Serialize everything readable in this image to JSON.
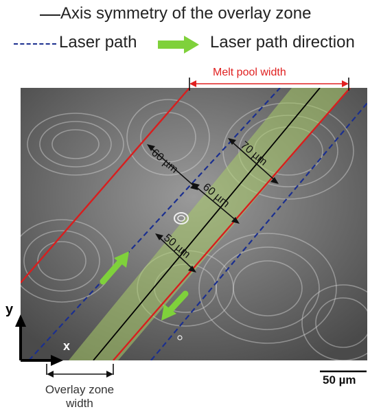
{
  "legend": {
    "axis_label": "Axis symmetry of the overlay zone",
    "laser_path_label": "Laser path",
    "direction_label": "Laser path direction"
  },
  "annotations": {
    "melt_pool_width": "Melt pool width",
    "dim_60_left": "60 µm",
    "dim_70": "70 µm",
    "dim_60_center": "60 µm",
    "dim_50": "50 µm",
    "overlay_zone_width_line1": "Overlay zone",
    "overlay_zone_width_line2": "width",
    "axis_x": "x",
    "axis_y": "y",
    "scale_bar": "50 µm"
  },
  "colors": {
    "melt_pool_boundary": "#d81e1e",
    "laser_path": "#1b2f8f",
    "overlay_zone": "#a9cc6a",
    "direction_arrow": "#7fd13b",
    "axis_line": "#000000",
    "annotation_red": "#e02020"
  }
}
